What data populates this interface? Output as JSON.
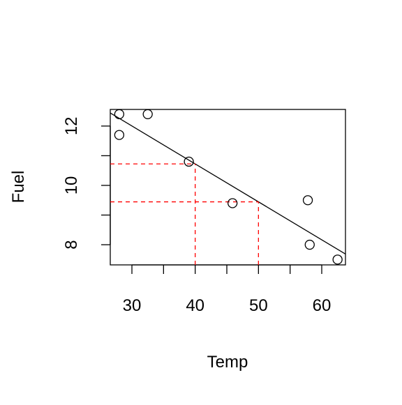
{
  "chart_data": {
    "type": "scatter",
    "x_label": "Temp",
    "y_label": "Fuel",
    "series": [
      {
        "color": "#000000",
        "x": [
          28,
          28,
          32.5,
          39,
          45.9,
          57.8,
          58.1,
          62.5
        ],
        "values": [
          12.4,
          11.7,
          12.4,
          10.8,
          9.4,
          9.5,
          8.0,
          7.5
        ]
      }
    ],
    "fit_line": {
      "intercept": 15.84,
      "slope": -0.1279,
      "color": "#000000"
    },
    "reference_x": [
      40,
      50
    ],
    "reference_color": "#ff0000",
    "xlim": [
      26.58,
      63.75
    ],
    "ylim": [
      7.32,
      12.56
    ],
    "xticks": [
      30,
      40,
      50,
      60
    ],
    "xminorticks": [
      35,
      45,
      55
    ],
    "yticks": [
      8,
      10,
      12
    ],
    "yminorticks": [
      9,
      11
    ]
  }
}
